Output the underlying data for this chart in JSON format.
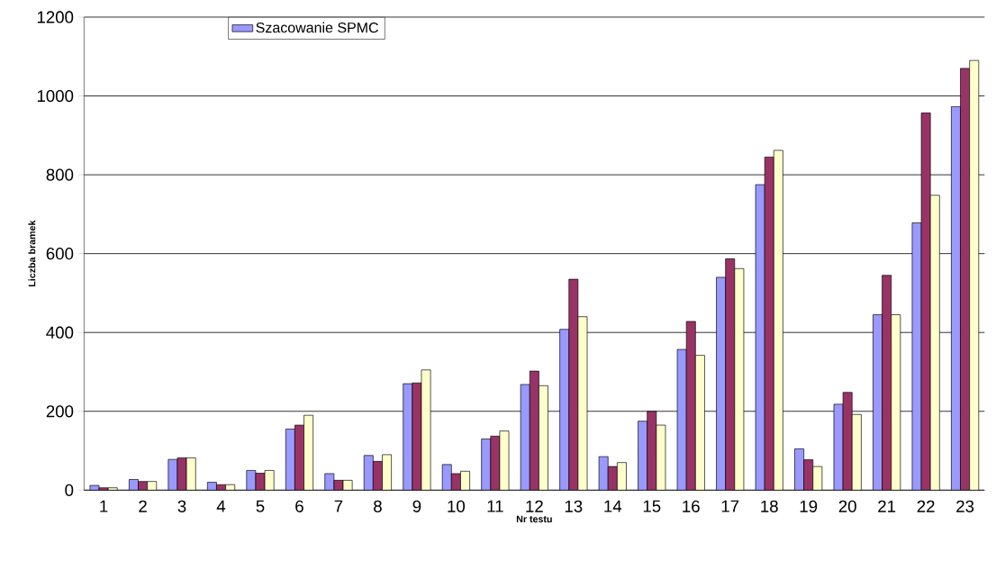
{
  "chart_data": {
    "type": "bar",
    "xlabel": "Nr testu",
    "ylabel": "Liczba bramek",
    "categories": [
      "1",
      "2",
      "3",
      "4",
      "5",
      "6",
      "7",
      "8",
      "9",
      "10",
      "11",
      "12",
      "13",
      "14",
      "15",
      "16",
      "17",
      "18",
      "19",
      "20",
      "21",
      "22",
      "23"
    ],
    "series": [
      {
        "name": "Szacowanie SPMC",
        "color": "#9999ff",
        "values": [
          12,
          27,
          78,
          20,
          50,
          155,
          42,
          88,
          270,
          65,
          130,
          268,
          408,
          85,
          175,
          357,
          540,
          775,
          105,
          218,
          445,
          678,
          973
        ]
      },
      {
        "color": "#993366",
        "values": [
          6,
          22,
          82,
          14,
          43,
          165,
          25,
          73,
          272,
          42,
          137,
          302,
          535,
          60,
          200,
          428,
          587,
          845,
          77,
          248,
          545,
          957,
          1070
        ]
      },
      {
        "color": "#ffffcc",
        "values": [
          6,
          22,
          82,
          14,
          50,
          190,
          25,
          90,
          305,
          48,
          150,
          265,
          440,
          70,
          165,
          342,
          562,
          862,
          60,
          192,
          445,
          748,
          1090
        ]
      }
    ],
    "ylim": [
      0,
      1200
    ],
    "yticks": [
      0,
      200,
      400,
      600,
      800,
      1000,
      1200
    ],
    "grid": "y",
    "legend": "top left"
  }
}
